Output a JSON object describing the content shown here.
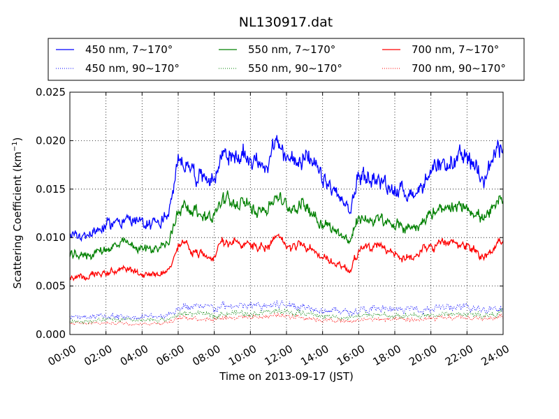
{
  "chart_data": {
    "type": "line",
    "title": "NL130917.dat",
    "xlabel": "Time on 2013-09-17 (JST)",
    "ylabel": "Scattering Coefficient (km",
    "ylabel_sup": "−1",
    "ylabel_close": ")",
    "xlim": [
      "00:00",
      "24:00"
    ],
    "ylim": [
      0,
      0.025
    ],
    "grid": true,
    "legend_position": "top",
    "x_ticks": [
      "00:00",
      "02:00",
      "04:00",
      "06:00",
      "08:00",
      "10:00",
      "12:00",
      "14:00",
      "16:00",
      "18:00",
      "20:00",
      "22:00",
      "24:00"
    ],
    "y_ticks": [
      "0.000",
      "0.005",
      "0.010",
      "0.015",
      "0.020",
      "0.025"
    ],
    "x_hours": [
      0,
      1,
      2,
      3,
      4,
      5,
      5.5,
      6,
      6.5,
      7,
      8,
      8.5,
      9,
      10,
      11,
      11.5,
      12,
      13,
      14,
      15,
      15.5,
      16,
      17,
      18,
      19,
      20,
      21,
      22,
      23,
      24
    ],
    "series": [
      {
        "name": "450 nm, 7∼170°",
        "color": "#0000ff",
        "style": "solid",
        "values": [
          0.0104,
          0.0103,
          0.0112,
          0.012,
          0.0114,
          0.0117,
          0.0125,
          0.0175,
          0.018,
          0.0165,
          0.016,
          0.019,
          0.0183,
          0.0182,
          0.0175,
          0.02,
          0.018,
          0.0185,
          0.016,
          0.014,
          0.0125,
          0.0165,
          0.016,
          0.015,
          0.0145,
          0.0165,
          0.0175,
          0.0183,
          0.0165,
          0.02
        ]
      },
      {
        "name": "450 nm, 90∼170°",
        "color": "#0000ff",
        "style": "dotted",
        "values": [
          0.0018,
          0.0018,
          0.0019,
          0.0018,
          0.0018,
          0.0019,
          0.0021,
          0.0027,
          0.0029,
          0.0028,
          0.0027,
          0.0029,
          0.0029,
          0.0029,
          0.003,
          0.0031,
          0.0031,
          0.0029,
          0.0026,
          0.0024,
          0.0023,
          0.0025,
          0.0026,
          0.0025,
          0.0026,
          0.0027,
          0.0028,
          0.0027,
          0.0026,
          0.003
        ]
      },
      {
        "name": "550 nm, 7∼170°",
        "color": "#008000",
        "style": "solid",
        "values": [
          0.0081,
          0.0082,
          0.0088,
          0.0094,
          0.0088,
          0.009,
          0.0095,
          0.013,
          0.0135,
          0.0125,
          0.0122,
          0.014,
          0.0135,
          0.0132,
          0.013,
          0.0145,
          0.013,
          0.0135,
          0.0115,
          0.0105,
          0.0095,
          0.012,
          0.0118,
          0.0112,
          0.011,
          0.0125,
          0.0128,
          0.0133,
          0.0118,
          0.014
        ]
      },
      {
        "name": "550 nm, 90∼170°",
        "color": "#008000",
        "style": "dotted",
        "values": [
          0.0014,
          0.0014,
          0.0015,
          0.0015,
          0.0014,
          0.0015,
          0.0016,
          0.002,
          0.0022,
          0.0021,
          0.002,
          0.0022,
          0.0022,
          0.0022,
          0.0023,
          0.0024,
          0.0023,
          0.0022,
          0.0019,
          0.0018,
          0.0017,
          0.0019,
          0.002,
          0.0019,
          0.0019,
          0.002,
          0.0021,
          0.0021,
          0.002,
          0.0023
        ]
      },
      {
        "name": "700 nm, 7∼170°",
        "color": "#ff0000",
        "style": "solid",
        "values": [
          0.0058,
          0.006,
          0.0063,
          0.0068,
          0.0062,
          0.0063,
          0.0066,
          0.009,
          0.0092,
          0.0083,
          0.0082,
          0.0098,
          0.0094,
          0.0092,
          0.009,
          0.01,
          0.0092,
          0.0094,
          0.0078,
          0.0072,
          0.0066,
          0.0088,
          0.009,
          0.0082,
          0.008,
          0.009,
          0.0095,
          0.0092,
          0.008,
          0.0098
        ]
      },
      {
        "name": "700 nm, 90∼170°",
        "color": "#ff0000",
        "style": "dotted",
        "values": [
          0.0011,
          0.0011,
          0.0012,
          0.0012,
          0.0011,
          0.0012,
          0.0013,
          0.0016,
          0.0018,
          0.0017,
          0.0016,
          0.0018,
          0.0018,
          0.0018,
          0.0019,
          0.002,
          0.0019,
          0.0018,
          0.0015,
          0.0014,
          0.0013,
          0.0015,
          0.0016,
          0.0015,
          0.0015,
          0.0016,
          0.0017,
          0.0017,
          0.0016,
          0.0019
        ]
      }
    ]
  }
}
